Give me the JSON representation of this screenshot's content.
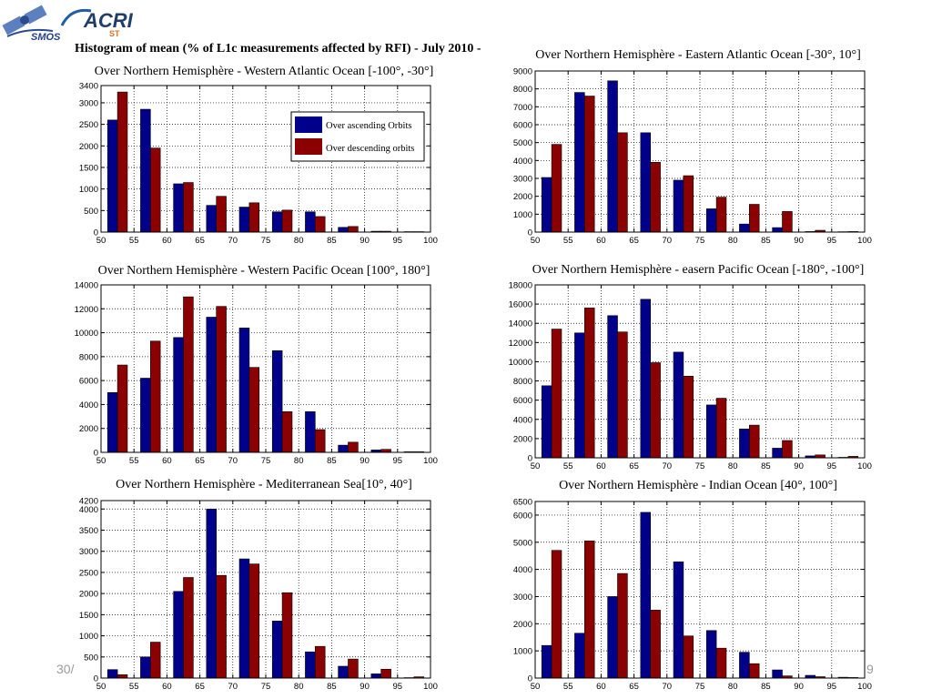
{
  "logos": {
    "smos_label": "SMOS",
    "acri_label": "ACRI",
    "acri_sub": "ST"
  },
  "main_title": "Histogram of mean (% of L1c measurements affected by RFI) - July 2010 -",
  "footer": {
    "left": "30/",
    "right": "9"
  },
  "colors": {
    "ascending": "#00008b",
    "descending": "#8b0000",
    "grid": "#000000",
    "footer": "#9a9a9a"
  },
  "legend": {
    "ascending": "Over ascending Orbits",
    "descending": "Over descending orbits"
  },
  "chart_data": [
    {
      "type": "bar",
      "title": "Over Northern Hemisphère - Western Atlantic Ocean [-100°, -30°]",
      "categories": [
        52.5,
        57.5,
        62.5,
        67.5,
        72.5,
        77.5,
        82.5,
        87.5,
        92.5,
        97.5
      ],
      "series": [
        {
          "name": "Over ascending Orbits",
          "values": [
            2600,
            2850,
            1120,
            620,
            580,
            470,
            470,
            110,
            20,
            10
          ]
        },
        {
          "name": "Over descending orbits",
          "values": [
            3250,
            1950,
            1150,
            830,
            680,
            510,
            360,
            130,
            20,
            10
          ]
        }
      ],
      "xlim": [
        50,
        100
      ],
      "ylim": [
        0,
        3400
      ],
      "xticks": [
        50,
        55,
        60,
        65,
        70,
        75,
        80,
        85,
        90,
        95,
        100
      ],
      "yticks": [
        0,
        500,
        1000,
        1500,
        2000,
        2500,
        3000,
        3400
      ],
      "grid": true,
      "legend": "top-right"
    },
    {
      "type": "bar",
      "title": "Over Northern Hemisphère - Eastern Atlantic Ocean [-30°, 10°]",
      "categories": [
        52.5,
        57.5,
        62.5,
        67.5,
        72.5,
        77.5,
        82.5,
        87.5,
        92.5,
        97.5
      ],
      "series": [
        {
          "name": "Over ascending Orbits",
          "values": [
            3050,
            7800,
            8450,
            5550,
            2900,
            1300,
            450,
            250,
            30,
            20
          ]
        },
        {
          "name": "Over descending orbits",
          "values": [
            4900,
            7600,
            5550,
            3900,
            3150,
            1950,
            1550,
            1150,
            100,
            30
          ]
        }
      ],
      "xlim": [
        50,
        100
      ],
      "ylim": [
        0,
        9000
      ],
      "xticks": [
        50,
        55,
        60,
        65,
        70,
        75,
        80,
        85,
        90,
        95,
        100
      ],
      "yticks": [
        0,
        1000,
        2000,
        3000,
        4000,
        5000,
        6000,
        7000,
        8000,
        9000
      ],
      "grid": true,
      "legend": "none"
    },
    {
      "type": "bar",
      "title": "Over Northern Hemisphère - Western Pacific Ocean [100°, 180°]",
      "categories": [
        52.5,
        57.5,
        62.5,
        67.5,
        72.5,
        77.5,
        82.5,
        87.5,
        92.5,
        97.5
      ],
      "series": [
        {
          "name": "Over ascending Orbits",
          "values": [
            5000,
            6200,
            9600,
            11300,
            10400,
            8500,
            3400,
            600,
            200,
            50
          ]
        },
        {
          "name": "Over descending orbits",
          "values": [
            7300,
            9300,
            13000,
            12200,
            7100,
            3400,
            1900,
            850,
            250,
            50
          ]
        }
      ],
      "xlim": [
        50,
        100
      ],
      "ylim": [
        0,
        14000
      ],
      "xticks": [
        50,
        55,
        60,
        65,
        70,
        75,
        80,
        85,
        90,
        95,
        100
      ],
      "yticks": [
        0,
        2000,
        4000,
        6000,
        8000,
        10000,
        12000,
        14000
      ],
      "grid": true,
      "legend": "none"
    },
    {
      "type": "bar",
      "title": "Over Northern Hemisphère - easern Pacific Ocean [-180°, -100°]",
      "categories": [
        52.5,
        57.5,
        62.5,
        67.5,
        72.5,
        77.5,
        82.5,
        87.5,
        92.5,
        97.5
      ],
      "series": [
        {
          "name": "Over ascending Orbits",
          "values": [
            7500,
            13000,
            14800,
            16500,
            11000,
            5500,
            3000,
            1000,
            200,
            50
          ]
        },
        {
          "name": "Over descending orbits",
          "values": [
            13400,
            15600,
            13100,
            9900,
            8500,
            6200,
            3400,
            1800,
            300,
            150
          ]
        }
      ],
      "xlim": [
        50,
        100
      ],
      "ylim": [
        0,
        18000
      ],
      "xticks": [
        50,
        55,
        60,
        65,
        70,
        75,
        80,
        85,
        90,
        95,
        100
      ],
      "yticks": [
        0,
        2000,
        4000,
        6000,
        8000,
        10000,
        12000,
        14000,
        16000,
        18000
      ],
      "grid": true,
      "legend": "none"
    },
    {
      "type": "bar",
      "title": "Over Northern Hemisphère - Mediterranean Sea[10°, 40°]",
      "categories": [
        52.5,
        57.5,
        62.5,
        67.5,
        72.5,
        77.5,
        82.5,
        87.5,
        92.5,
        97.5
      ],
      "series": [
        {
          "name": "Over ascending Orbits",
          "values": [
            200,
            500,
            2050,
            4000,
            2820,
            1350,
            620,
            280,
            100,
            10
          ]
        },
        {
          "name": "Over descending orbits",
          "values": [
            80,
            850,
            2380,
            2430,
            2700,
            2020,
            750,
            450,
            210,
            30
          ]
        }
      ],
      "xlim": [
        50,
        100
      ],
      "ylim": [
        0,
        4200
      ],
      "xticks": [
        50,
        55,
        60,
        65,
        70,
        75,
        80,
        85,
        90,
        95,
        100
      ],
      "yticks": [
        0,
        500,
        1000,
        1500,
        2000,
        2500,
        3000,
        3500,
        4000,
        4200
      ],
      "grid": true,
      "legend": "none"
    },
    {
      "type": "bar",
      "title": "Over Northern Hemisphère - Indian Ocean [40°, 100°]",
      "categories": [
        52.5,
        57.5,
        62.5,
        67.5,
        72.5,
        77.5,
        82.5,
        87.5,
        92.5,
        97.5
      ],
      "series": [
        {
          "name": "Over ascending Orbits",
          "values": [
            1200,
            1650,
            3000,
            6100,
            4280,
            1750,
            950,
            300,
            100,
            30
          ]
        },
        {
          "name": "Over descending orbits",
          "values": [
            4700,
            5050,
            3850,
            2500,
            1550,
            1100,
            530,
            80,
            50,
            20
          ]
        }
      ],
      "xlim": [
        50,
        100
      ],
      "ylim": [
        0,
        6500
      ],
      "xticks": [
        50,
        55,
        60,
        65,
        70,
        75,
        80,
        85,
        90,
        95,
        100
      ],
      "yticks": [
        0,
        1000,
        2000,
        3000,
        4000,
        5000,
        6000,
        6500
      ],
      "grid": true,
      "legend": "none"
    }
  ]
}
